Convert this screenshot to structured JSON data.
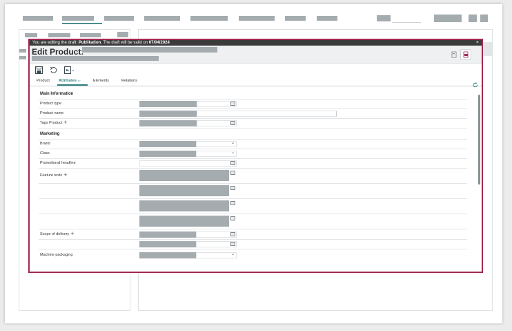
{
  "draft_banner": {
    "prefix": "You are editing the draft:",
    "draft_name": "Publikation",
    "middle": ". The draft will be valid on",
    "valid_date": "07/04/2024",
    "close_glyph": "×"
  },
  "modal": {
    "title": "Edit Product:"
  },
  "tabs": [
    {
      "label": "Product"
    },
    {
      "label": "Attributes",
      "chevron": "⌵"
    },
    {
      "label": "Elements"
    },
    {
      "label": "Relations"
    }
  ],
  "sections": {
    "main": "Main Information",
    "marketing": "Marketing"
  },
  "fields": {
    "product_type": "Product type",
    "product_name": "Product name",
    "tags_product": "Tags Product",
    "brand": "Brand",
    "class": "Class",
    "promotional_headline": "Promotional headline",
    "feature_texts": "Feature texts",
    "scope_of_delivery": "Scope of delivery",
    "machine_packaging": "Machine packaging"
  },
  "glyphs": {
    "plus": "+",
    "dropdown": "⌄"
  },
  "icons": [
    "save-icon",
    "undo-icon",
    "export-icon",
    "refresh-icon",
    "document-icon",
    "pdf-icon",
    "edit-icon",
    "close-icon"
  ]
}
